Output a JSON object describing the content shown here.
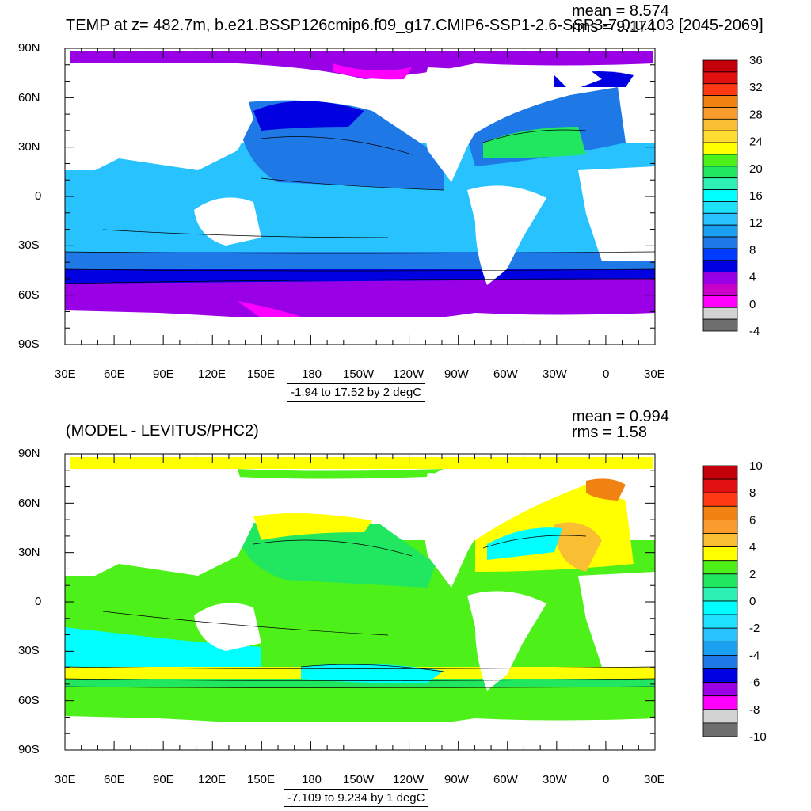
{
  "top_panel": {
    "title": "TEMP at z= 482.7m, b.e21.BSSP126cmip6.f09_g17.CMIP6-SSP1-2.6-SSP3-7.0.u.103 [2045-2069]",
    "mean_label": "mean = 8.574",
    "rms_label": "rms = 9.174",
    "range_label": "-1.94 to 17.52 by 2 degC",
    "colorbar": {
      "labels": [
        "36",
        "32",
        "28",
        "24",
        "20",
        "16",
        "12",
        "8",
        "4",
        "0",
        "-4"
      ],
      "colors": [
        "#c4000a",
        "#e10f0f",
        "#ff3a12",
        "#f08212",
        "#fa9b2d",
        "#fabe32",
        "#ffdc32",
        "#ffff00",
        "#4ef01a",
        "#21e65f",
        "#2df0b4",
        "#00ffff",
        "#1ee1ff",
        "#28c3ff",
        "#1aa0f0",
        "#1e78e6",
        "#003cff",
        "#0000e1",
        "#9a00e6",
        "#c800c8",
        "#ff00ff",
        "#d2d2d2",
        "#6e6e6e"
      ]
    }
  },
  "bottom_panel": {
    "title": "(MODEL - LEVITUS/PHC2)",
    "mean_label": "mean = 0.994",
    "rms_label": "rms = 1.58",
    "range_label": "-7.109 to 9.234 by 1 degC",
    "colorbar": {
      "labels": [
        "10",
        "8",
        "6",
        "4",
        "2",
        "0",
        "-2",
        "-4",
        "-6",
        "-8",
        "-10"
      ],
      "colors": [
        "#c4000a",
        "#e10f0f",
        "#ff3a12",
        "#f08212",
        "#fa9b2d",
        "#fabe32",
        "#ffff00",
        "#4ef01a",
        "#21e65f",
        "#2df0b4",
        "#00ffff",
        "#1ee1ff",
        "#28c3ff",
        "#1aa0f0",
        "#1e78e6",
        "#0000e1",
        "#9a00e6",
        "#ff00ff",
        "#d2d2d2",
        "#6e6e6e"
      ]
    }
  },
  "axes": {
    "lat_labels": [
      "90N",
      "60N",
      "30N",
      "0",
      "30S",
      "60S",
      "90S"
    ],
    "lon_labels": [
      "30E",
      "60E",
      "90E",
      "120E",
      "150E",
      "180",
      "150W",
      "120W",
      "90W",
      "60W",
      "30W",
      "0",
      "30E"
    ]
  },
  "map_colors": {
    "ocean_warm": "#28c3ff",
    "ocean_mid": "#1e78e6",
    "ocean_cold": "#0000e1",
    "polar": "#9a00e6",
    "polar_pink": "#ff00ff",
    "gulf_stream": "#21e65f",
    "diff_zero": "#4ef01a",
    "diff_pos": "#ffff00",
    "diff_warm": "#fabe32",
    "diff_neg": "#2df0b4",
    "diff_cold": "#00ffff"
  }
}
